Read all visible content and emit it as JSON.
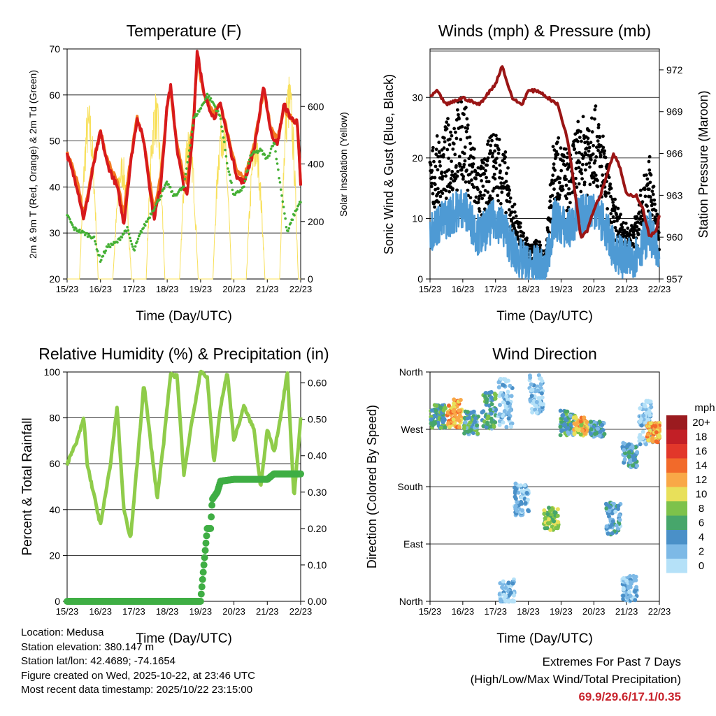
{
  "colors": {
    "red": "#d7191c",
    "orange": "#f47a20",
    "green": "#45b035",
    "yellow": "#f8e05a",
    "blue": "#4e9ad4",
    "black": "#000000",
    "maroon": "#9a1515",
    "rh": "#8fcc4a",
    "precip": "#3fae44"
  },
  "xticks": [
    "15/23",
    "16/23",
    "17/23",
    "18/23",
    "19/23",
    "20/23",
    "21/23",
    "22/23"
  ],
  "xlabel": "Time (Day/UTC)",
  "chart_data": [
    {
      "type": "line",
      "title": "Temperature (F)",
      "ylabel": "2m & 9m T (Red, Orange) & 2m Td (Green)",
      "y2label": "Solar Insolation (Yellow)",
      "ylim": [
        20,
        70
      ],
      "y2lim": [
        0,
        800
      ],
      "yticks": [
        "20",
        "30",
        "40",
        "50",
        "60",
        "70"
      ],
      "y2ticks": [
        "0",
        "200",
        "400",
        "600"
      ],
      "series": [
        {
          "name": "2m T",
          "color": "red",
          "points": [
            [
              0,
              47
            ],
            [
              0.3,
              40
            ],
            [
              0.5,
              33
            ],
            [
              0.8,
              45
            ],
            [
              1,
              52
            ],
            [
              1.2,
              45
            ],
            [
              1.5,
              40
            ],
            [
              1.7,
              32
            ],
            [
              1.9,
              45
            ],
            [
              2.1,
              55
            ],
            [
              2.3,
              50
            ],
            [
              2.6,
              33
            ],
            [
              2.8,
              40
            ],
            [
              3,
              58
            ],
            [
              3.1,
              62
            ],
            [
              3.3,
              48
            ],
            [
              3.5,
              40
            ],
            [
              3.6,
              38
            ],
            [
              3.8,
              55
            ],
            [
              3.9,
              70
            ],
            [
              4.1,
              60
            ],
            [
              4.4,
              55
            ],
            [
              4.6,
              58
            ],
            [
              4.9,
              48
            ],
            [
              5.1,
              42
            ],
            [
              5.3,
              41
            ],
            [
              5.6,
              48
            ],
            [
              5.9,
              62
            ],
            [
              6.1,
              52
            ],
            [
              6.3,
              49
            ],
            [
              6.5,
              58
            ],
            [
              6.7,
              55
            ],
            [
              6.9,
              54
            ],
            [
              7,
              40
            ]
          ]
        },
        {
          "name": "9m T",
          "color": "orange",
          "points": [
            [
              0,
              48
            ],
            [
              0.3,
              41
            ],
            [
              0.5,
              34
            ],
            [
              0.8,
              46
            ],
            [
              1,
              52
            ],
            [
              1.2,
              46
            ],
            [
              1.5,
              41
            ],
            [
              1.7,
              34
            ],
            [
              1.9,
              46
            ],
            [
              2.1,
              55
            ],
            [
              2.3,
              50
            ],
            [
              2.6,
              35
            ],
            [
              2.8,
              42
            ],
            [
              3,
              58
            ],
            [
              3.1,
              61
            ],
            [
              3.3,
              49
            ],
            [
              3.5,
              42
            ],
            [
              3.6,
              41
            ],
            [
              3.8,
              56
            ],
            [
              3.9,
              68
            ],
            [
              4.1,
              60
            ],
            [
              4.4,
              56
            ],
            [
              4.6,
              58
            ],
            [
              4.9,
              49
            ],
            [
              5.1,
              43
            ],
            [
              5.3,
              42
            ],
            [
              5.6,
              49
            ],
            [
              5.9,
              61
            ],
            [
              6.1,
              53
            ],
            [
              6.3,
              50
            ],
            [
              6.5,
              57
            ],
            [
              6.7,
              55
            ],
            [
              6.9,
              54
            ],
            [
              7,
              41
            ]
          ]
        },
        {
          "name": "2m Td",
          "color": "green",
          "points": [
            [
              0,
              34
            ],
            [
              0.2,
              31
            ],
            [
              0.5,
              30
            ],
            [
              0.8,
              29
            ],
            [
              1,
              24
            ],
            [
              1.2,
              27
            ],
            [
              1.5,
              28
            ],
            [
              1.8,
              31
            ],
            [
              2,
              26
            ],
            [
              2.2,
              30
            ],
            [
              2.5,
              34
            ],
            [
              2.8,
              38
            ],
            [
              3,
              41
            ],
            [
              3.2,
              38
            ],
            [
              3.5,
              40
            ],
            [
              3.8,
              55
            ],
            [
              4,
              57
            ],
            [
              4.2,
              60
            ],
            [
              4.4,
              58
            ],
            [
              4.6,
              55
            ],
            [
              4.8,
              45
            ],
            [
              5,
              38
            ],
            [
              5.3,
              40
            ],
            [
              5.5,
              47
            ],
            [
              5.8,
              48
            ],
            [
              6,
              46
            ],
            [
              6.2,
              50
            ],
            [
              6.4,
              40
            ],
            [
              6.6,
              30
            ],
            [
              6.8,
              34
            ],
            [
              7,
              37
            ]
          ]
        },
        {
          "name": "Solar daily peaks",
          "color": "yellow",
          "points": [
            [
              0.65,
              620
            ],
            [
              1.65,
              440
            ],
            [
              2.65,
              660
            ],
            [
              3.65,
              560
            ],
            [
              4.65,
              600
            ],
            [
              5.65,
              520
            ],
            [
              6.65,
              720
            ]
          ]
        }
      ]
    },
    {
      "type": "scatter",
      "title": "Winds (mph) & Pressure (mb)",
      "ylabel": "Sonic Wind & Gust (Blue, Black)",
      "y2label": "Station Pressure (Maroon)",
      "ylim": [
        0,
        38
      ],
      "y2lim": [
        957,
        973.5
      ],
      "yticks": [
        "0",
        "10",
        "20",
        "30"
      ],
      "y2ticks": [
        "957",
        "960",
        "963",
        "966",
        "969",
        "972"
      ],
      "wind_mean": [
        [
          0,
          8
        ],
        [
          0.5,
          10
        ],
        [
          1,
          12
        ],
        [
          1.3,
          9
        ],
        [
          1.5,
          7
        ],
        [
          2,
          10
        ],
        [
          2.3,
          8
        ],
        [
          2.5,
          5
        ],
        [
          2.8,
          3
        ],
        [
          3,
          2
        ],
        [
          3.3,
          2
        ],
        [
          3.5,
          1
        ],
        [
          3.8,
          10
        ],
        [
          4.2,
          8
        ],
        [
          4.5,
          10
        ],
        [
          4.8,
          11
        ],
        [
          5,
          12
        ],
        [
          5.3,
          9
        ],
        [
          5.6,
          5
        ],
        [
          6,
          3
        ],
        [
          6.3,
          4
        ],
        [
          6.7,
          8
        ],
        [
          7,
          3
        ]
      ],
      "pressure": [
        [
          0,
          970
        ],
        [
          0.2,
          970.5
        ],
        [
          0.5,
          969.5
        ],
        [
          1,
          970
        ],
        [
          1.5,
          969.5
        ],
        [
          2,
          971
        ],
        [
          2.2,
          972.3
        ],
        [
          2.5,
          970
        ],
        [
          2.8,
          969.5
        ],
        [
          3,
          970.5
        ],
        [
          3.3,
          970.5
        ],
        [
          3.6,
          970
        ],
        [
          3.9,
          969.5
        ],
        [
          4.2,
          967
        ],
        [
          4.5,
          962
        ],
        [
          4.6,
          960
        ],
        [
          4.8,
          960.5
        ],
        [
          5,
          962
        ],
        [
          5.2,
          963
        ],
        [
          5.4,
          964.5
        ],
        [
          5.6,
          966
        ],
        [
          5.8,
          965
        ],
        [
          6,
          963
        ],
        [
          6.3,
          963
        ],
        [
          6.5,
          962
        ],
        [
          6.7,
          960
        ],
        [
          6.9,
          960.5
        ],
        [
          7,
          961.5
        ]
      ]
    },
    {
      "type": "line",
      "title": "Relative Humidity (%) & Precipitation (in)",
      "ylabel": "Percent & Total Rainfall",
      "ylim": [
        0,
        100
      ],
      "y2lim": [
        0,
        0.63
      ],
      "yticks": [
        "0",
        "20",
        "40",
        "60",
        "80",
        "100"
      ],
      "y2ticks": [
        "0.00",
        "0.10",
        "0.20",
        "0.30",
        "0.40",
        "0.50",
        "0.60"
      ],
      "rh": [
        [
          0,
          60
        ],
        [
          0.3,
          70
        ],
        [
          0.5,
          80
        ],
        [
          0.6,
          60
        ],
        [
          0.9,
          40
        ],
        [
          1,
          33
        ],
        [
          1.3,
          60
        ],
        [
          1.5,
          85
        ],
        [
          1.7,
          40
        ],
        [
          1.9,
          27
        ],
        [
          2.1,
          60
        ],
        [
          2.3,
          95
        ],
        [
          2.5,
          70
        ],
        [
          2.7,
          45
        ],
        [
          2.9,
          70
        ],
        [
          3.1,
          99
        ],
        [
          3.3,
          98
        ],
        [
          3.5,
          55
        ],
        [
          3.7,
          75
        ],
        [
          4,
          100
        ],
        [
          4.2,
          98
        ],
        [
          4.4,
          60
        ],
        [
          4.6,
          85
        ],
        [
          4.8,
          100
        ],
        [
          5,
          70
        ],
        [
          5.3,
          85
        ],
        [
          5.6,
          75
        ],
        [
          5.8,
          50
        ],
        [
          6,
          75
        ],
        [
          6.2,
          65
        ],
        [
          6.4,
          80
        ],
        [
          6.6,
          100
        ],
        [
          6.8,
          45
        ],
        [
          7,
          80
        ]
      ],
      "precip": [
        [
          0,
          0
        ],
        [
          4,
          0
        ],
        [
          4.1,
          0.1
        ],
        [
          4.2,
          0.2
        ],
        [
          4.3,
          0.2
        ],
        [
          4.35,
          0.28
        ],
        [
          4.5,
          0.3
        ],
        [
          4.6,
          0.33
        ],
        [
          5,
          0.335
        ],
        [
          6,
          0.335
        ],
        [
          6.2,
          0.35
        ],
        [
          7,
          0.35
        ]
      ]
    },
    {
      "type": "scatter",
      "title": "Wind Direction",
      "ylabel": "Direction (Colored By Speed)",
      "yticks": [
        "North",
        "East",
        "South",
        "West",
        "North"
      ],
      "ylim": [
        0,
        360
      ],
      "clusters": [
        [
          0.25,
          290,
          18,
          7
        ],
        [
          0.75,
          295,
          22,
          13
        ],
        [
          1.25,
          280,
          18,
          6
        ],
        [
          1.8,
          300,
          30,
          6
        ],
        [
          2.3,
          310,
          40,
          2
        ],
        [
          2.8,
          160,
          25,
          3
        ],
        [
          3.25,
          325,
          30,
          2
        ],
        [
          3.7,
          130,
          18,
          9
        ],
        [
          4.2,
          280,
          20,
          6
        ],
        [
          4.6,
          275,
          15,
          12
        ],
        [
          5.1,
          270,
          12,
          5
        ],
        [
          5.6,
          130,
          25,
          4
        ],
        [
          6.1,
          230,
          20,
          5
        ],
        [
          6.6,
          280,
          35,
          2
        ],
        [
          6.85,
          265,
          15,
          13
        ],
        [
          2.35,
          10,
          25,
          2
        ],
        [
          6.1,
          20,
          20,
          3
        ]
      ],
      "legend": {
        "title": "mph",
        "labels": [
          "20+",
          "18",
          "16",
          "14",
          "12",
          "10",
          "8",
          "6",
          "4",
          "2",
          "0"
        ],
        "colors": [
          "#9b1b1f",
          "#c21f26",
          "#e2372a",
          "#f26a2a",
          "#f9a847",
          "#e8e05a",
          "#7dc24b",
          "#47a66b",
          "#4a90c8",
          "#7db9e6",
          "#b5e1f8"
        ]
      }
    }
  ],
  "info": {
    "location": "Location: Medusa",
    "elevation": "Station elevation: 380.147 m",
    "latlon": "Station lat/lon: 42.4689; -74.1654",
    "created": "Figure created on Wed, 2025-10-22, at 23:46 UTC",
    "recent": "Most recent data timestamp: 2025/10/22 23:15:00"
  },
  "extremes": {
    "title": "Extremes For Past 7 Days",
    "subtitle": "(High/Low/Max Wind/Total Precipitation)",
    "values": "69.9/29.6/17.1/0.35"
  }
}
